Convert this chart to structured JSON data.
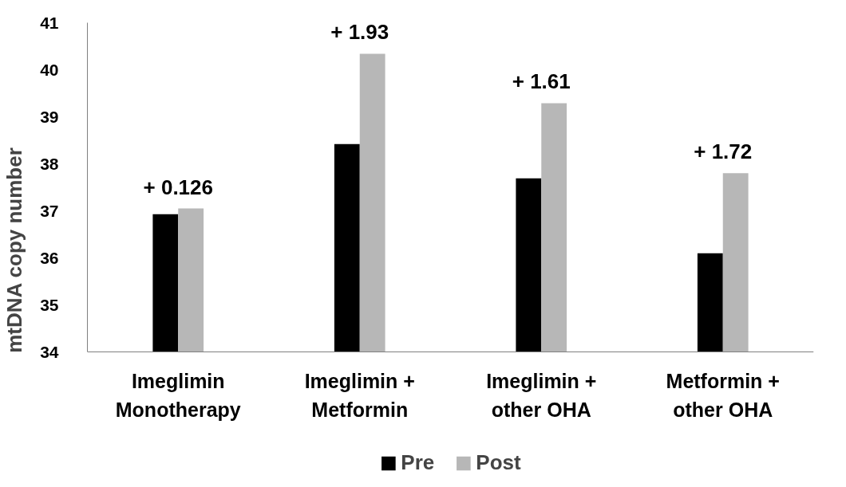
{
  "chart_data": {
    "type": "bar",
    "ylabel": "mtDNA copy number",
    "categories": [
      "Imeglimin\nMonotherapy",
      "Imeglimin +\nMetformin",
      "Imeglimin +\nother OHA",
      "Metformin +\nother OHA"
    ],
    "series": [
      {
        "name": "Pre",
        "color": "#000000",
        "values": [
          36.93,
          38.42,
          37.69,
          36.1
        ]
      },
      {
        "name": "Post",
        "color": "#b7b7b7",
        "values": [
          37.05,
          40.34,
          39.29,
          37.8
        ]
      }
    ],
    "ylim": [
      34,
      41
    ],
    "yticks": [
      34,
      35,
      36,
      37,
      38,
      39,
      40,
      41
    ],
    "grid": false,
    "legend": "bottom",
    "annotations": [
      "+ 0.126",
      "+ 1.93",
      "+ 1.61",
      "+ 1.72"
    ]
  }
}
